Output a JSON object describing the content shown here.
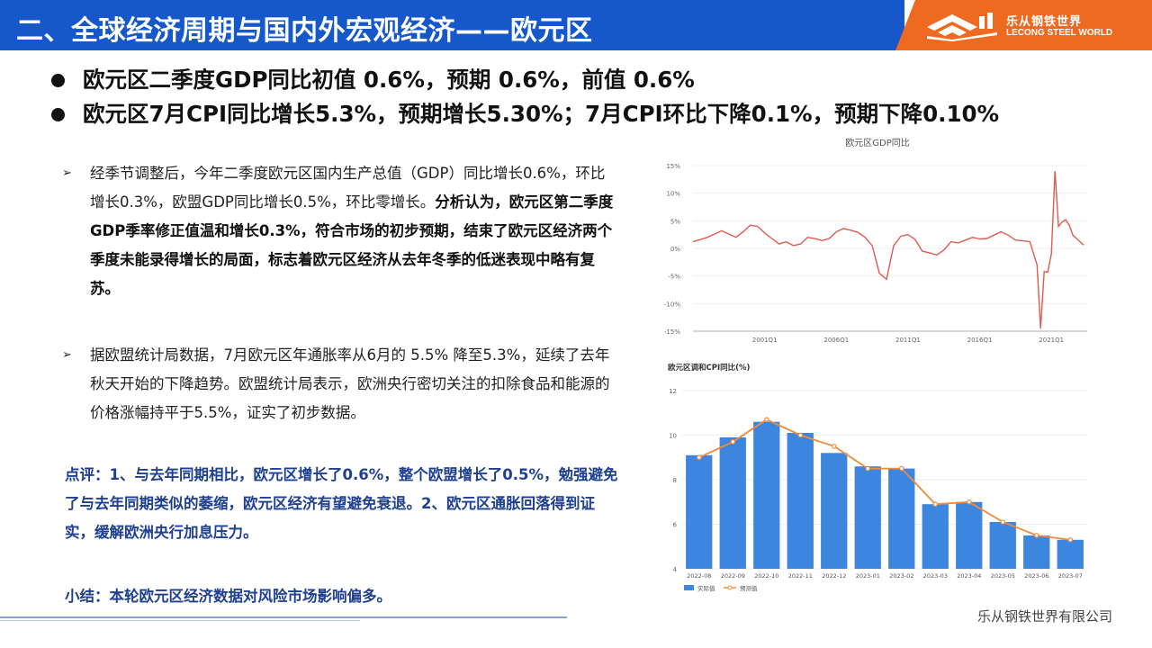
{
  "header": {
    "title": "二、全球经济周期与国内外宏观经济——欧元区",
    "logo_cn": "乐从钢铁世界",
    "logo_en": "LECONG STEEL WORLD"
  },
  "bullets": [
    "欧元区二季度GDP同比初值 0.6%，预期 0.6%，前值 0.6%",
    "欧元区7月CPI同比增长5.3%，预期增长5.30%；7月CPI环比下降0.1%，预期下降0.10%"
  ],
  "paragraphs": {
    "p1_normal": "经季节调整后，今年二季度欧元区国内生产总值（GDP）同比增长0.6%，环比增长0.3%，欧盟GDP同比增长0.5%，环比零增长。",
    "p1_bold": "分析认为，欧元区第二季度GDP季率修正值温和增长0.3%，符合市场的初步预期，结束了欧元区经济两个季度未能录得增长的局面，标志着欧元区经济从去年冬季的低迷表现中略有复苏。",
    "p2": "据欧盟统计局数据，7月欧元区年通胀率从6月的 5.5% 降至5.3%，延续了去年秋天开始的下降趋势。欧盟统计局表示，欧洲央行密切关注的扣除食品和能源的价格涨幅持平于5.5%，证实了初步数据。"
  },
  "comment": "点评：1、与去年同期相比，欧元区增长了0.6%，整个欧盟增长了0.5%，勉强避免了与去年同期类似的萎缩，欧元区经济有望避免衰退。2、欧元区通胀回落得到证实，缓解欧洲央行加息压力。",
  "summary": "小结：本轮欧元区经济数据对风险市场影响偏多。",
  "footer": "乐从钢铁世界有限公司",
  "chart_data": [
    {
      "type": "line",
      "title": "欧元区GDP同比",
      "ylim": [
        -15,
        15
      ],
      "yticks": [
        "15%",
        "10%",
        "5%",
        "0%",
        "-5%",
        "-10%",
        "-15%"
      ],
      "xticks": [
        "2001Q1",
        "2006Q1",
        "2011Q1",
        "2016Q1",
        "2021Q1"
      ],
      "color": "#e05a4f",
      "x_start": 1996.0,
      "x_end": 2023.5,
      "points": [
        [
          1996.0,
          1.2
        ],
        [
          1996.5,
          1.6
        ],
        [
          1997.0,
          2.0
        ],
        [
          1997.5,
          2.6
        ],
        [
          1998.0,
          3.2
        ],
        [
          1998.5,
          2.6
        ],
        [
          1999.0,
          2.0
        ],
        [
          1999.5,
          3.0
        ],
        [
          2000.0,
          4.2
        ],
        [
          2000.5,
          4.0
        ],
        [
          2001.0,
          2.8
        ],
        [
          2001.5,
          1.8
        ],
        [
          2002.0,
          0.8
        ],
        [
          2002.5,
          1.2
        ],
        [
          2003.0,
          0.5
        ],
        [
          2003.5,
          0.8
        ],
        [
          2004.0,
          2.0
        ],
        [
          2004.5,
          1.8
        ],
        [
          2005.0,
          1.4
        ],
        [
          2005.5,
          1.8
        ],
        [
          2006.0,
          3.0
        ],
        [
          2006.5,
          3.6
        ],
        [
          2007.0,
          3.3
        ],
        [
          2007.5,
          2.9
        ],
        [
          2008.0,
          2.0
        ],
        [
          2008.5,
          0.5
        ],
        [
          2009.0,
          -4.5
        ],
        [
          2009.5,
          -5.6
        ],
        [
          2010.0,
          0.5
        ],
        [
          2010.5,
          2.2
        ],
        [
          2011.0,
          2.5
        ],
        [
          2011.5,
          1.6
        ],
        [
          2012.0,
          -0.5
        ],
        [
          2012.5,
          -0.8
        ],
        [
          2013.0,
          -1.2
        ],
        [
          2013.5,
          -0.3
        ],
        [
          2014.0,
          1.2
        ],
        [
          2014.5,
          1.0
        ],
        [
          2015.0,
          1.5
        ],
        [
          2015.5,
          2.0
        ],
        [
          2016.0,
          1.7
        ],
        [
          2016.5,
          1.8
        ],
        [
          2017.0,
          2.4
        ],
        [
          2017.5,
          3.0
        ],
        [
          2018.0,
          2.4
        ],
        [
          2018.5,
          1.5
        ],
        [
          2019.0,
          1.4
        ],
        [
          2019.5,
          1.2
        ],
        [
          2020.0,
          -3.0
        ],
        [
          2020.25,
          -14.5
        ],
        [
          2020.5,
          -4.2
        ],
        [
          2020.75,
          -4.3
        ],
        [
          2021.0,
          -1.0
        ],
        [
          2021.25,
          14.0
        ],
        [
          2021.5,
          4.0
        ],
        [
          2021.75,
          4.8
        ],
        [
          2022.0,
          5.2
        ],
        [
          2022.25,
          4.2
        ],
        [
          2022.5,
          2.4
        ],
        [
          2022.75,
          1.8
        ],
        [
          2023.0,
          1.2
        ],
        [
          2023.25,
          0.6
        ]
      ]
    },
    {
      "type": "bar",
      "title": "欧元区调和CPI同比(%)",
      "ylim": [
        4,
        12
      ],
      "yticks": [
        4,
        6,
        8,
        10,
        12
      ],
      "categories": [
        "2022-08",
        "2022-09",
        "2022-10",
        "2022-11",
        "2022-12",
        "2023-01",
        "2023-02",
        "2023-03",
        "2023-04",
        "2023-05",
        "2023-06",
        "2023-07"
      ],
      "series": [
        {
          "name": "实际值",
          "color": "#3d86e0",
          "values": [
            9.1,
            9.9,
            10.6,
            10.1,
            9.2,
            8.6,
            8.5,
            6.9,
            7.0,
            6.1,
            5.5,
            5.3
          ]
        },
        {
          "name": "预测值",
          "color": "#f08a3c",
          "values": [
            9.0,
            9.7,
            10.7,
            10.0,
            9.5,
            8.5,
            8.5,
            6.9,
            7.0,
            6.1,
            5.5,
            5.3
          ]
        }
      ],
      "legend": "bottom-left"
    }
  ]
}
